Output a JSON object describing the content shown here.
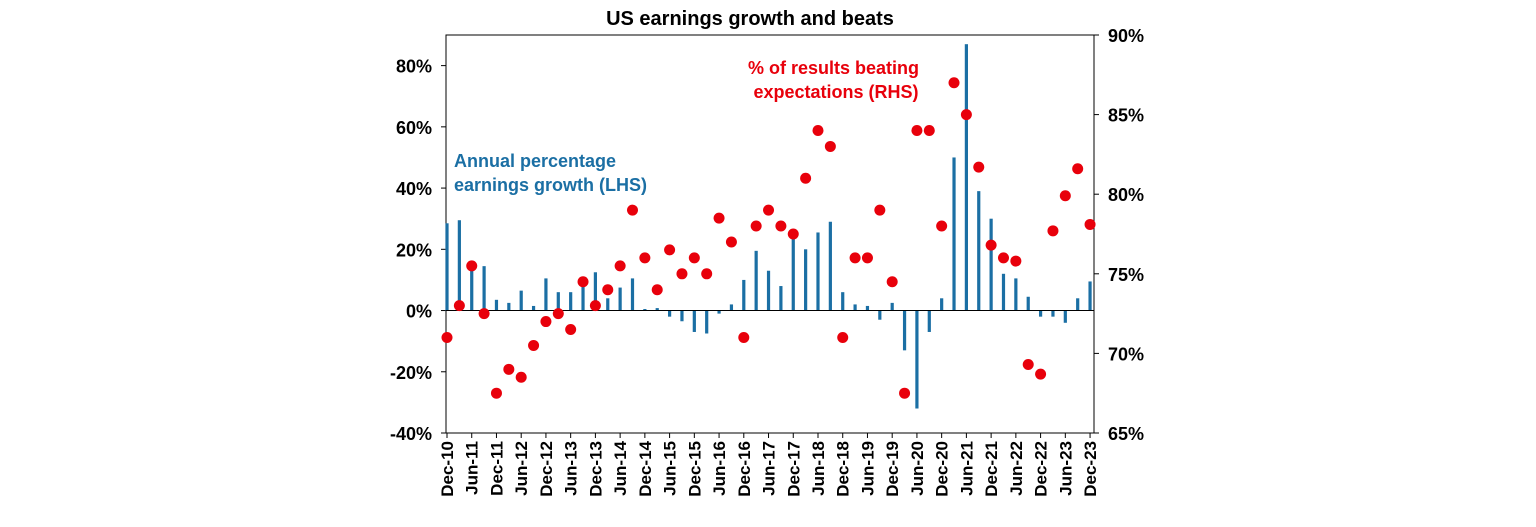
{
  "chart_data": {
    "type": "bar+scatter",
    "title": "US earnings growth and beats",
    "x_labels": [
      "Dec-10",
      "Jun-11",
      "Dec-11",
      "Jun-12",
      "Dec-12",
      "Jun-13",
      "Dec-13",
      "Jun-14",
      "Dec-14",
      "Jun-15",
      "Dec-15",
      "Jun-16",
      "Dec-16",
      "Jun-17",
      "Dec-17",
      "Jun-18",
      "Dec-18",
      "Jun-19",
      "Dec-19",
      "Jun-20",
      "Dec-20",
      "Jun-21",
      "Dec-21",
      "Jun-22",
      "Dec-22",
      "Jun-23",
      "Dec-23"
    ],
    "left_axis": {
      "min": -40,
      "max": 90,
      "ticks": [
        -40,
        -20,
        0,
        20,
        40,
        60,
        80
      ],
      "tick_labels": [
        "-40%",
        "-20%",
        "0%",
        "20%",
        "40%",
        "60%",
        "80%"
      ]
    },
    "right_axis": {
      "min": 65,
      "max": 90,
      "ticks": [
        65,
        70,
        75,
        80,
        85,
        90
      ],
      "tick_labels": [
        "65%",
        "70%",
        "75%",
        "80%",
        "85%",
        "90%"
      ]
    },
    "series": [
      {
        "name": "Annual percentage earnings growth (LHS)",
        "label_lines": [
          "Annual percentage",
          "earnings growth (LHS)"
        ],
        "axis": "left",
        "kind": "bar",
        "color": "#1B6FA4",
        "values": [
          28.5,
          29.5,
          14.5,
          14.5,
          3.5,
          2.5,
          6.5,
          1.5,
          10.5,
          6,
          6,
          9,
          12.5,
          4,
          7.5,
          10.5,
          0.5,
          0.8,
          -2,
          -3.5,
          -7,
          -7.5,
          -1,
          2,
          10,
          19.5,
          13,
          8,
          24.5,
          20,
          25.5,
          29,
          6,
          2,
          1.5,
          -3,
          2.5,
          -13,
          -32,
          -7,
          4,
          50,
          87,
          39,
          30,
          12,
          10.5,
          4.5,
          -2,
          -2,
          -4,
          4,
          9.5
        ]
      },
      {
        "name": "% of results beating expectations (RHS)",
        "label_lines": [
          "% of results beating",
          "expectations (RHS)"
        ],
        "axis": "right",
        "kind": "scatter",
        "color": "#E8000B",
        "values": [
          71,
          73,
          75.5,
          72.5,
          67.5,
          69,
          68.5,
          70.5,
          72,
          72.5,
          71.5,
          74.5,
          73,
          74,
          75.5,
          79,
          76,
          74,
          76.5,
          75,
          76,
          75,
          78.5,
          77,
          71,
          78,
          79,
          78,
          77.5,
          81,
          84,
          83,
          71,
          76,
          76,
          79,
          74.5,
          67.5,
          84,
          84,
          78,
          87,
          85,
          81.7,
          76.8,
          76,
          75.8,
          69.3,
          68.7,
          77.7,
          79.9,
          81.6,
          78.1
        ]
      }
    ]
  }
}
